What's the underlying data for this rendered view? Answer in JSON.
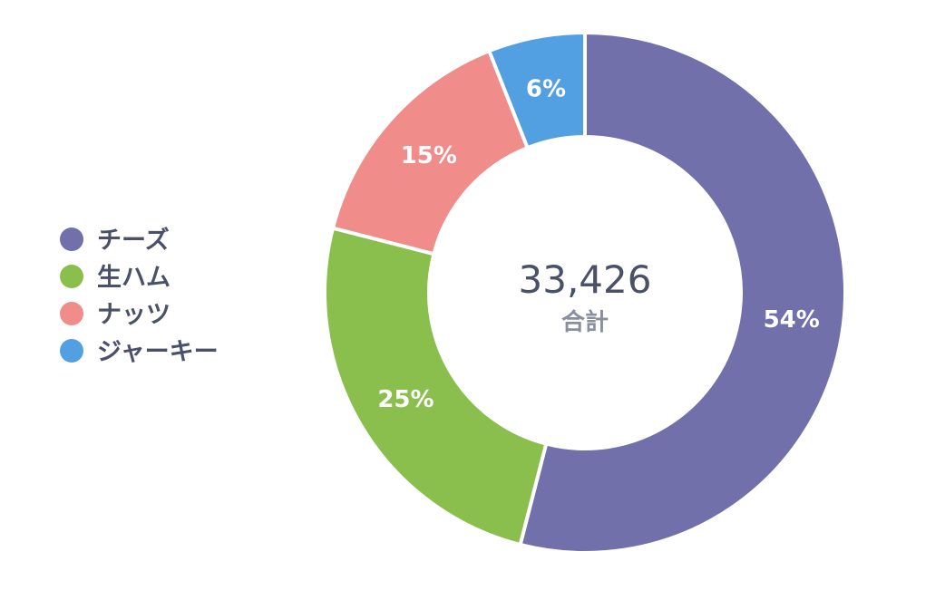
{
  "chart_data": {
    "type": "pie",
    "donut": true,
    "legend_position": "left",
    "categories": [
      "チーズ",
      "生ハム",
      "ナッツ",
      "ジャーキー"
    ],
    "values": [
      54,
      25,
      15,
      6
    ],
    "value_labels": [
      "54%",
      "25%",
      "15%",
      "6%"
    ],
    "colors": [
      "#7270ab",
      "#8bbf4d",
      "#f08c8a",
      "#529fe2"
    ],
    "center_value": "33,426",
    "center_label": "合計"
  }
}
